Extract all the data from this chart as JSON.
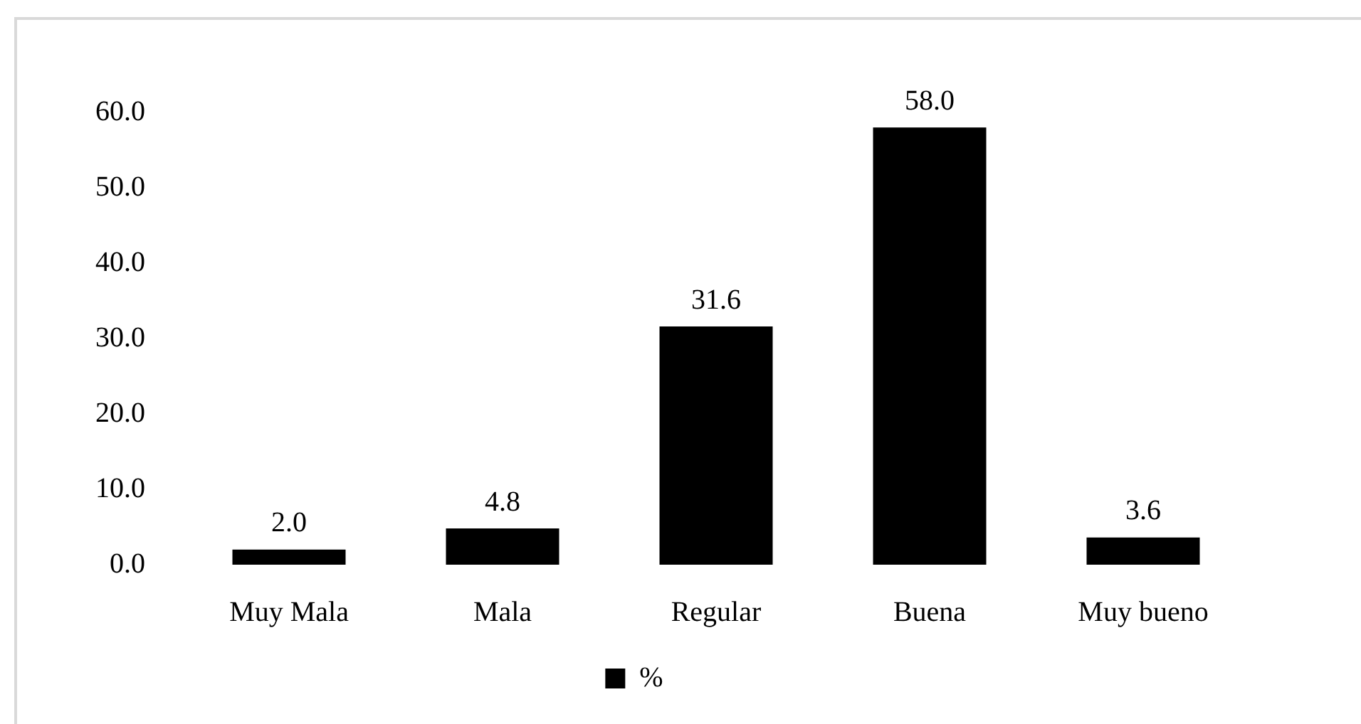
{
  "chart_data": {
    "type": "bar",
    "categories": [
      "Muy Mala",
      "Mala",
      "Regular",
      "Buena",
      "Muy bueno"
    ],
    "series": [
      {
        "name": "%",
        "color": "#000000",
        "values": [
          2.0,
          4.8,
          31.6,
          58.0,
          3.6
        ],
        "value_labels": [
          "2.0",
          "4.8",
          "31.6",
          "58.0",
          "3.6"
        ]
      }
    ],
    "ylim": [
      0,
      60
    ],
    "yticks": [
      {
        "value": 0,
        "label": "0.0"
      },
      {
        "value": 10,
        "label": "10.0"
      },
      {
        "value": 20,
        "label": "20.0"
      },
      {
        "value": 30,
        "label": "30.0"
      },
      {
        "value": 40,
        "label": "40.0"
      },
      {
        "value": 50,
        "label": "50.0"
      },
      {
        "value": 60,
        "label": "60.0"
      }
    ],
    "legend": "bottom"
  }
}
